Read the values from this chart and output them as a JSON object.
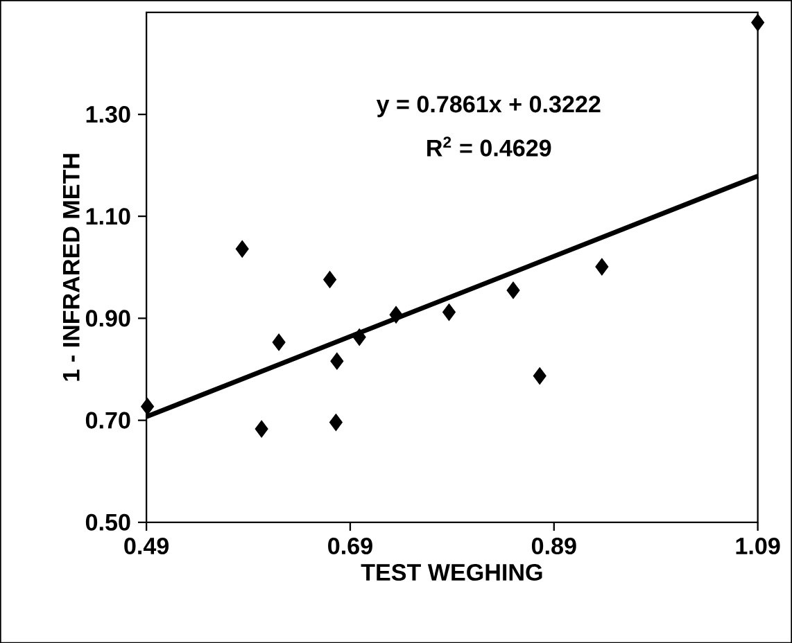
{
  "chart_data": {
    "type": "scatter",
    "xlabel": "TEST WEGHING",
    "ylabel": "1 - INFRARED METH",
    "x": [
      0.491,
      0.584,
      0.603,
      0.62,
      0.67,
      0.677,
      0.676,
      0.699,
      0.735,
      0.787,
      0.85,
      0.876,
      0.937,
      1.09
    ],
    "series": [
      {
        "color": "#000000",
        "marker": "diamond",
        "values": [
          0.727,
          1.036,
          0.683,
          0.853,
          0.976,
          0.816,
          0.696,
          0.863,
          0.907,
          0.912,
          0.955,
          0.787,
          1.001,
          1.48
        ]
      },
      {
        "type": "line",
        "color": "#000000",
        "x": [
          0.49,
          1.09
        ],
        "values": [
          0.707,
          1.179
        ]
      }
    ],
    "annotations": [
      "y = 0.7861x + 0.3222",
      "R$^{2}$ = 0.4629"
    ],
    "xlim": [
      0.49,
      1.09
    ],
    "ylim": [
      0.5,
      1.5
    ],
    "xticks": [
      0.49,
      0.69,
      0.89,
      1.09
    ],
    "yticks": [
      {
        "value": 0.5,
        "label": "0.50"
      },
      {
        "value": 0.7,
        "label": "0.70"
      },
      {
        "value": 0.9,
        "label": "0.90"
      },
      {
        "value": 1.1,
        "label": "1.10"
      },
      {
        "value": 1.3,
        "label": "1.30"
      }
    ]
  }
}
